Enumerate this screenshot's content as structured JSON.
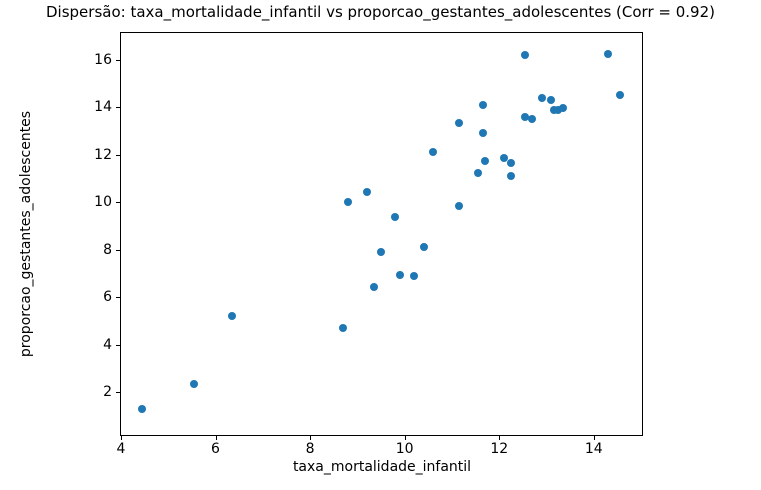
{
  "chart_data": {
    "type": "scatter",
    "title": "Dispersão: taxa_mortalidade_infantil vs proporcao_gestantes_adolescentes (Corr = 0.92)",
    "xlabel": "taxa_mortalidade_infantil",
    "ylabel": "proporcao_gestantes_adolescentes",
    "correlation": 0.92,
    "marker_color": "#1f77b4",
    "grid": false,
    "legend": "none",
    "xlim": [
      3.98,
      15.04
    ],
    "ylim": [
      0.17,
      17.16
    ],
    "x_ticks": [
      4,
      6,
      8,
      10,
      12,
      14
    ],
    "y_ticks": [
      2,
      4,
      6,
      8,
      10,
      12,
      14,
      16
    ],
    "points": [
      [
        4.45,
        1.3
      ],
      [
        5.55,
        2.35
      ],
      [
        6.35,
        5.2
      ],
      [
        8.7,
        4.7
      ],
      [
        9.35,
        6.45
      ],
      [
        8.8,
        10.0
      ],
      [
        9.2,
        10.45
      ],
      [
        9.8,
        9.4
      ],
      [
        9.5,
        7.9
      ],
      [
        9.9,
        6.95
      ],
      [
        10.2,
        6.9
      ],
      [
        10.4,
        8.1
      ],
      [
        11.15,
        9.85
      ],
      [
        10.6,
        12.1
      ],
      [
        11.15,
        13.35
      ],
      [
        11.65,
        14.1
      ],
      [
        11.65,
        12.9
      ],
      [
        11.55,
        11.25
      ],
      [
        11.7,
        11.75
      ],
      [
        12.1,
        11.85
      ],
      [
        12.25,
        11.65
      ],
      [
        12.25,
        11.1
      ],
      [
        12.55,
        16.2
      ],
      [
        12.55,
        13.6
      ],
      [
        12.7,
        13.5
      ],
      [
        12.9,
        14.4
      ],
      [
        13.1,
        14.3
      ],
      [
        13.15,
        13.9
      ],
      [
        13.25,
        13.9
      ],
      [
        13.35,
        13.95
      ],
      [
        14.3,
        16.25
      ],
      [
        14.55,
        14.5
      ]
    ]
  }
}
